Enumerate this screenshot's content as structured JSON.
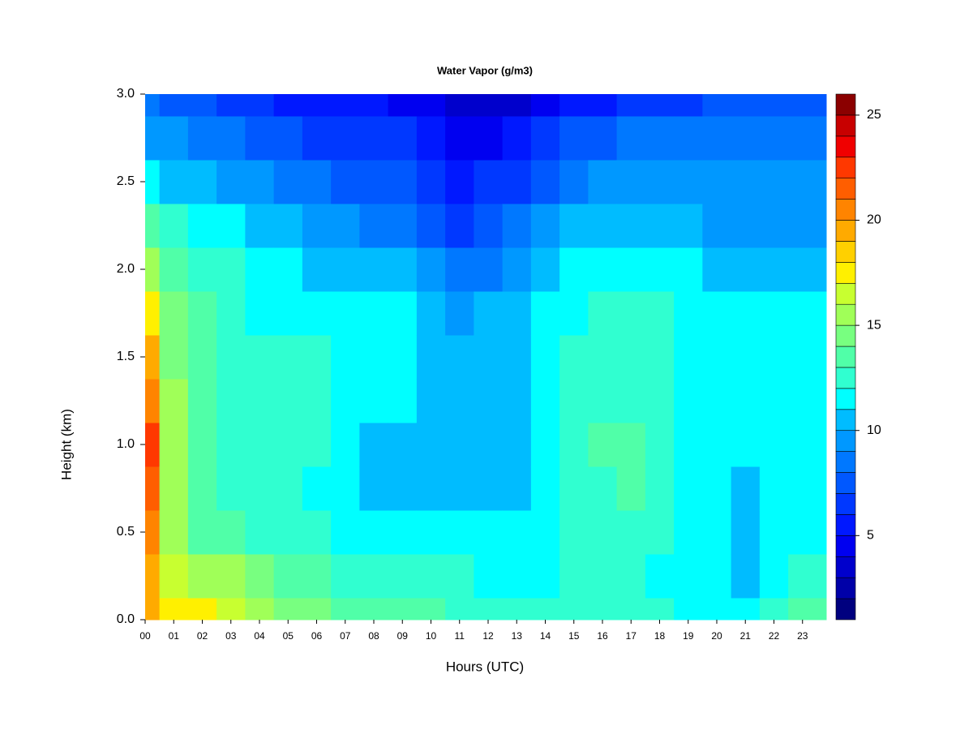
{
  "chart_data": {
    "type": "heatmap",
    "title": "Water Vapor (g/m3)",
    "x_label": "Hours (UTC)",
    "y_label": "Height (km)",
    "x": [
      0,
      1,
      2,
      3,
      4,
      5,
      6,
      7,
      8,
      9,
      10,
      11,
      12,
      13,
      14,
      15,
      16,
      17,
      18,
      19,
      20,
      21,
      22,
      23
    ],
    "y": [
      0,
      0.25,
      0.5,
      0.75,
      1,
      1.25,
      1.5,
      1.75,
      2,
      2.25,
      2.5,
      2.75,
      3
    ],
    "z": [
      [
        19,
        19,
        20,
        21,
        22,
        20,
        19,
        17,
        15,
        13,
        11,
        9,
        8
      ],
      [
        17,
        16,
        15,
        15,
        15,
        15,
        14,
        14,
        13,
        12,
        10,
        9,
        7
      ],
      [
        17,
        15,
        13,
        13,
        13,
        13,
        13,
        13,
        12,
        11,
        10,
        8,
        7
      ],
      [
        16,
        15,
        13,
        12,
        12,
        12,
        12,
        12,
        12,
        11,
        9,
        8,
        6
      ],
      [
        15,
        14,
        12,
        12,
        12,
        12,
        12,
        11,
        11,
        10,
        9,
        7,
        6
      ],
      [
        14,
        13,
        12,
        12,
        12,
        12,
        12,
        11,
        11,
        10,
        8,
        7,
        5
      ],
      [
        14,
        13,
        12,
        11,
        12,
        12,
        12,
        11,
        10,
        9,
        8,
        6,
        5
      ],
      [
        13,
        12,
        11,
        11,
        11,
        11,
        11,
        11,
        10,
        9,
        7,
        6,
        5
      ],
      [
        13,
        12,
        11,
        10,
        10,
        11,
        11,
        11,
        10,
        8,
        7,
        6,
        5
      ],
      [
        13,
        12,
        11,
        10,
        10,
        11,
        11,
        11,
        10,
        8,
        7,
        6,
        4
      ],
      [
        13,
        12,
        11,
        10,
        10,
        10,
        10,
        10,
        9,
        7,
        6,
        5,
        4
      ],
      [
        12,
        12,
        11,
        10,
        10,
        10,
        10,
        9,
        8,
        6,
        5,
        4,
        3
      ],
      [
        12,
        11,
        11,
        10,
        10,
        10,
        10,
        10,
        8,
        7,
        6,
        4,
        3
      ],
      [
        12,
        11,
        11,
        10,
        10,
        10,
        10,
        10,
        9,
        8,
        6,
        5,
        3
      ],
      [
        12,
        11,
        11,
        11,
        11,
        11,
        11,
        11,
        10,
        9,
        7,
        6,
        4
      ],
      [
        12,
        12,
        12,
        12,
        12,
        12,
        12,
        11,
        11,
        10,
        8,
        7,
        5
      ],
      [
        12,
        12,
        12,
        12,
        13,
        12,
        12,
        12,
        11,
        10,
        9,
        7,
        5
      ],
      [
        12,
        12,
        12,
        13,
        13,
        12,
        12,
        12,
        11,
        10,
        9,
        8,
        6
      ],
      [
        12,
        11,
        12,
        12,
        12,
        12,
        12,
        12,
        11,
        10,
        9,
        8,
        6
      ],
      [
        11,
        11,
        11,
        11,
        11,
        11,
        11,
        11,
        11,
        10,
        9,
        8,
        6
      ],
      [
        11,
        11,
        11,
        11,
        11,
        11,
        11,
        11,
        10,
        9,
        9,
        8,
        7
      ],
      [
        11,
        10,
        10,
        10,
        11,
        11,
        11,
        11,
        10,
        9,
        9,
        8,
        7
      ],
      [
        12,
        11,
        11,
        11,
        11,
        11,
        11,
        11,
        10,
        9,
        9,
        8,
        7
      ],
      [
        13,
        12,
        11,
        11,
        11,
        11,
        11,
        11,
        10,
        9,
        9,
        8,
        7
      ]
    ],
    "xlim": [
      0,
      23.83
    ],
    "ylim": [
      0,
      3
    ],
    "xticks": [
      {
        "value": 0,
        "label": "00"
      },
      {
        "value": 1,
        "label": "01"
      },
      {
        "value": 2,
        "label": "02"
      },
      {
        "value": 3,
        "label": "03"
      },
      {
        "value": 4,
        "label": "04"
      },
      {
        "value": 5,
        "label": "05"
      },
      {
        "value": 6,
        "label": "06"
      },
      {
        "value": 7,
        "label": "07"
      },
      {
        "value": 8,
        "label": "08"
      },
      {
        "value": 9,
        "label": "09"
      },
      {
        "value": 10,
        "label": "10"
      },
      {
        "value": 11,
        "label": "11"
      },
      {
        "value": 12,
        "label": "12"
      },
      {
        "value": 13,
        "label": "13"
      },
      {
        "value": 14,
        "label": "14"
      },
      {
        "value": 15,
        "label": "15"
      },
      {
        "value": 16,
        "label": "16"
      },
      {
        "value": 17,
        "label": "17"
      },
      {
        "value": 18,
        "label": "18"
      },
      {
        "value": 19,
        "label": "19"
      },
      {
        "value": 20,
        "label": "20"
      },
      {
        "value": 21,
        "label": "21"
      },
      {
        "value": 22,
        "label": "22"
      },
      {
        "value": 23,
        "label": "23"
      }
    ],
    "yticks": [
      {
        "value": 0,
        "label": "0.0"
      },
      0.5,
      {
        "value": 1,
        "label": "1.0"
      },
      1.5,
      {
        "value": 2,
        "label": "2.0"
      },
      2.5,
      {
        "value": 3,
        "label": "3.0"
      }
    ],
    "zlim": [
      1,
      26
    ],
    "zticks": [
      5,
      10,
      15,
      20,
      25
    ],
    "colors": [
      "#00007F",
      "#0000A8",
      "#0000CC",
      "#0000F0",
      "#0018FF",
      "#0038FF",
      "#0058FF",
      "#0078FF",
      "#0098FF",
      "#00BCFF",
      "#00FFFF",
      "#30FFD0",
      "#50FFA8",
      "#78FF80",
      "#A0FF58",
      "#C8FF30",
      "#FFF000",
      "#FFD000",
      "#FFAA00",
      "#FF8400",
      "#FF5E00",
      "#FF3800",
      "#F00000",
      "#C80000",
      "#8B0000"
    ]
  }
}
